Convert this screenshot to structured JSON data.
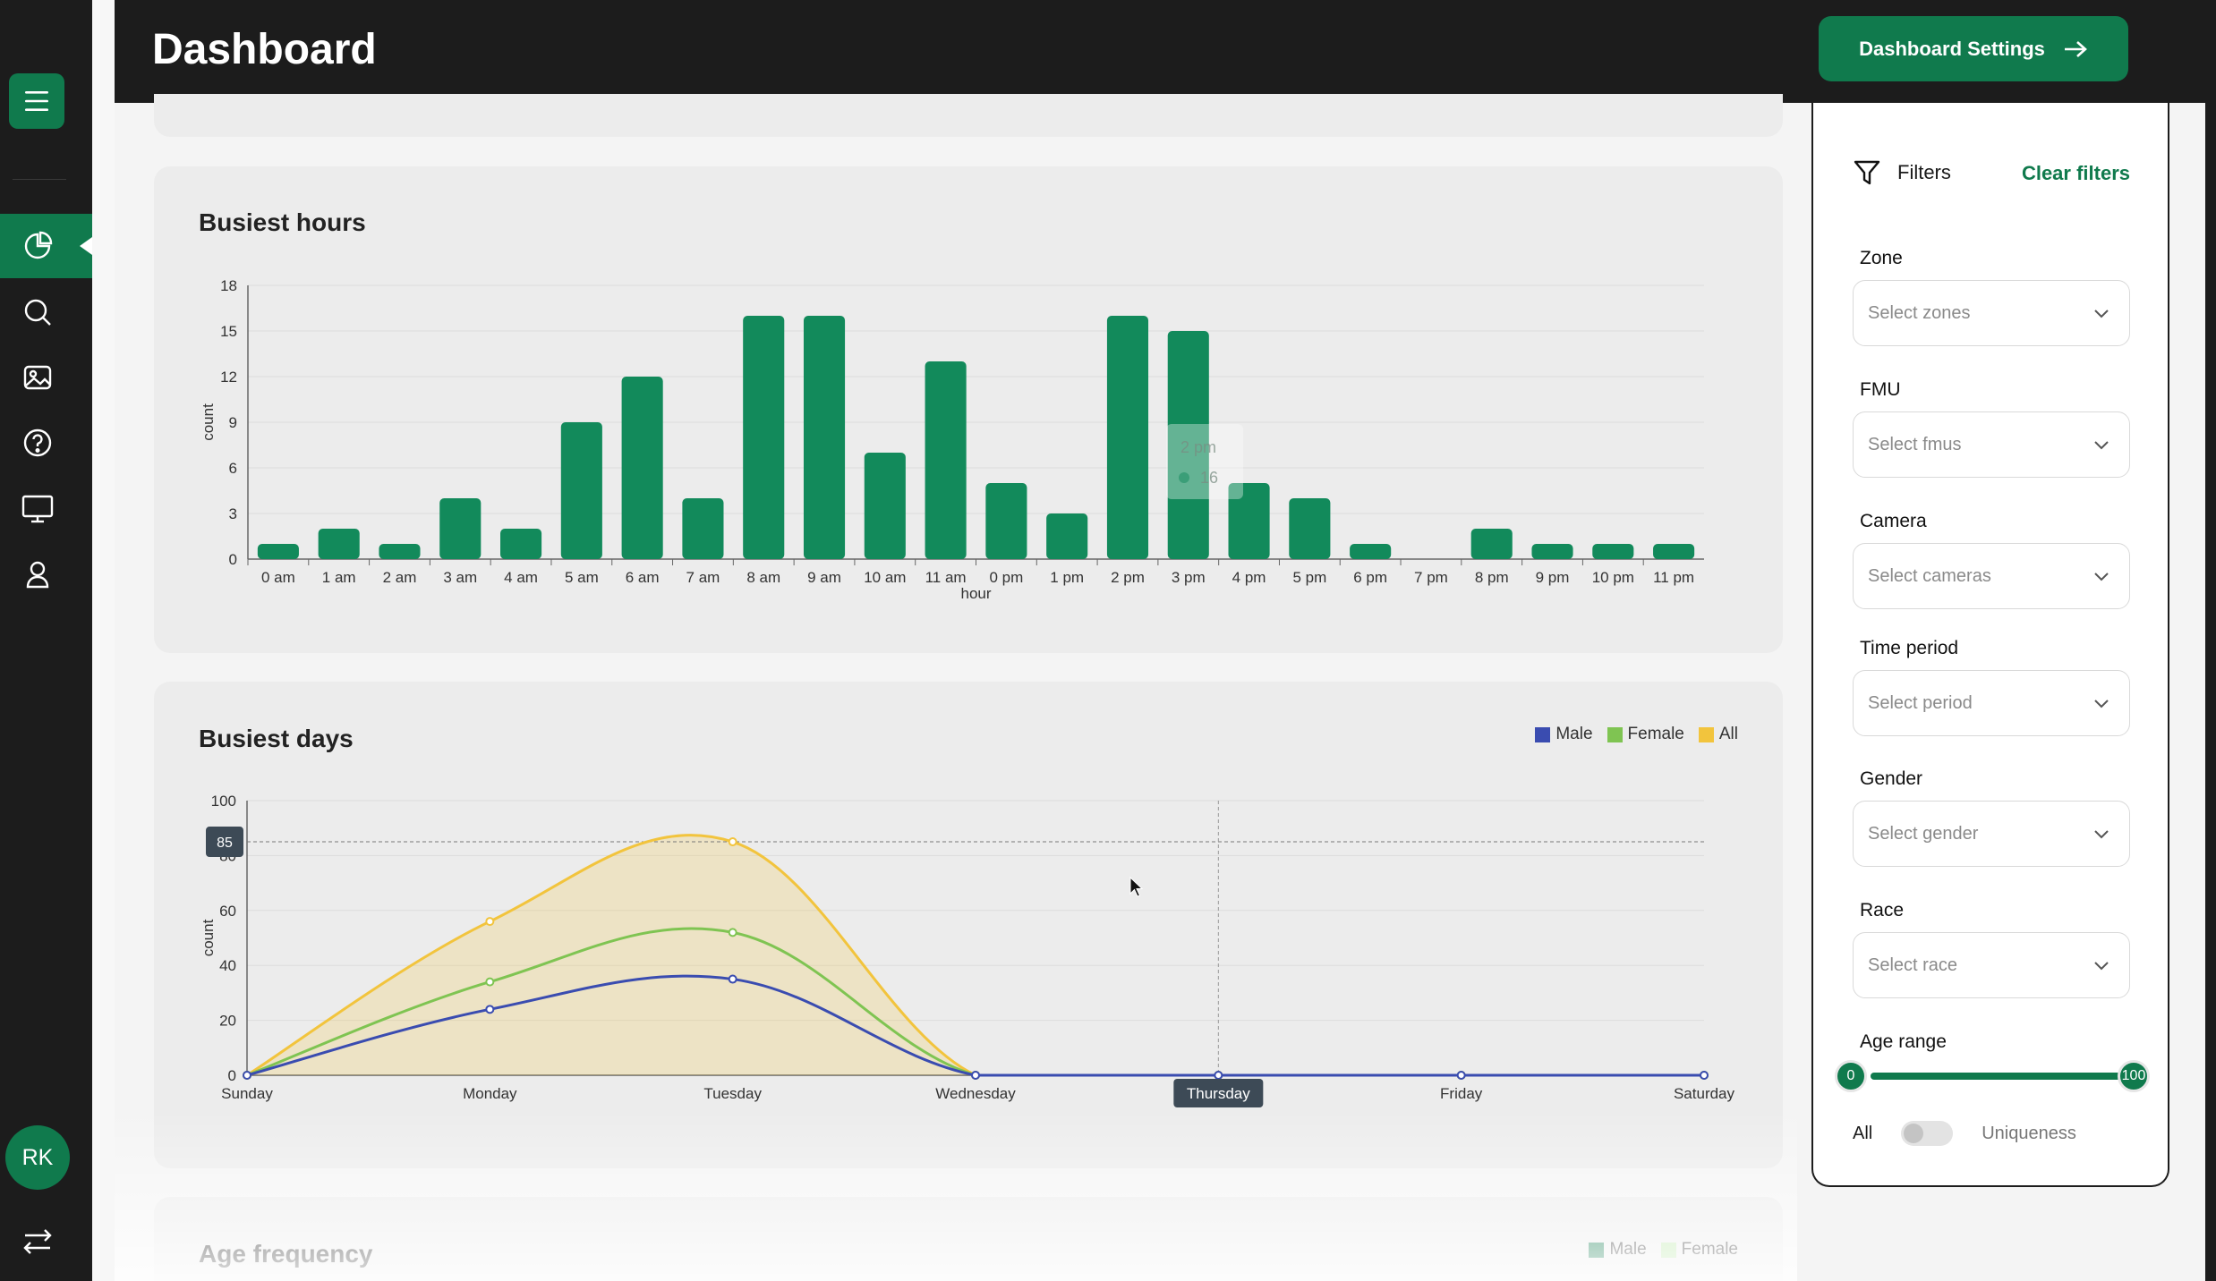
{
  "header": {
    "title": "Dashboard",
    "settings_label": "Dashboard Settings"
  },
  "sidebar": {
    "menu_icon": "hamburger-icon",
    "items": [
      {
        "icon": "pie-chart-icon",
        "active": true
      },
      {
        "icon": "search-icon",
        "active": false
      },
      {
        "icon": "image-icon",
        "active": false
      },
      {
        "icon": "help-icon",
        "active": false
      },
      {
        "icon": "monitor-icon",
        "active": false
      },
      {
        "icon": "user-icon",
        "active": false
      }
    ],
    "avatar_initials": "RK",
    "bottom_icon": "swap-arrows-icon"
  },
  "colors": {
    "brand": "#107a4d",
    "bar": "#128a5b",
    "male": "#3a4cb0",
    "female": "#7fc452",
    "all": "#f2c43d",
    "dark": "#1c1c1c"
  },
  "busiest_hours": {
    "title": "Busiest hours",
    "tooltip": {
      "label": "2 pm",
      "value": "16"
    },
    "chart_data": {
      "type": "bar",
      "xlabel": "hour",
      "ylabel": "count",
      "ylim": [
        0,
        18
      ],
      "yticks": [
        "0",
        "3",
        "6",
        "9",
        "12",
        "15",
        "18"
      ],
      "categories": [
        "0 am",
        "1 am",
        "2 am",
        "3 am",
        "4 am",
        "5 am",
        "6 am",
        "7 am",
        "8 am",
        "9 am",
        "10 am",
        "11 am",
        "0 pm",
        "1 pm",
        "2 pm",
        "3 pm",
        "4 pm",
        "5 pm",
        "6 pm",
        "7 pm",
        "8 pm",
        "9 pm",
        "10 pm",
        "11 pm"
      ],
      "values": [
        1,
        2,
        1,
        4,
        2,
        9,
        12,
        4,
        16,
        16,
        7,
        13,
        5,
        3,
        16,
        15,
        5,
        4,
        1,
        0,
        2,
        1,
        1,
        1
      ]
    }
  },
  "busiest_days": {
    "title": "Busiest days",
    "crosshair_y_label": "85",
    "crosshair_x_label": "Thursday",
    "chart_data": {
      "type": "area",
      "ylabel": "count",
      "ylim": [
        0,
        100
      ],
      "yticks": [
        "0",
        "20",
        "40",
        "60",
        "80",
        "100"
      ],
      "categories": [
        "Sunday",
        "Monday",
        "Tuesday",
        "Wednesday",
        "Thursday",
        "Friday",
        "Saturday"
      ],
      "legend": [
        "Male",
        "Female",
        "All"
      ],
      "series": [
        {
          "name": "Male",
          "values": [
            0,
            24,
            35,
            0,
            0,
            0,
            0
          ]
        },
        {
          "name": "Female",
          "values": [
            0,
            34,
            52,
            0,
            0,
            0,
            0
          ]
        },
        {
          "name": "All",
          "values": [
            0,
            56,
            85,
            0,
            0,
            0,
            0
          ]
        }
      ]
    }
  },
  "age_frequency": {
    "title": "Age frequency",
    "legend": [
      "Male",
      "Female"
    ]
  },
  "filters": {
    "title": "Filters",
    "clear_label": "Clear filters",
    "fields": [
      {
        "label": "Zone",
        "placeholder": "Select zones"
      },
      {
        "label": "FMU",
        "placeholder": "Select fmus"
      },
      {
        "label": "Camera",
        "placeholder": "Select cameras"
      },
      {
        "label": "Time period",
        "placeholder": "Select period"
      },
      {
        "label": "Gender",
        "placeholder": "Select gender"
      },
      {
        "label": "Race",
        "placeholder": "Select race"
      }
    ],
    "age_range": {
      "label": "Age range",
      "min": "0",
      "max": "100"
    },
    "toggle": {
      "left_label": "All",
      "right_label": "Uniqueness",
      "on": false
    }
  }
}
